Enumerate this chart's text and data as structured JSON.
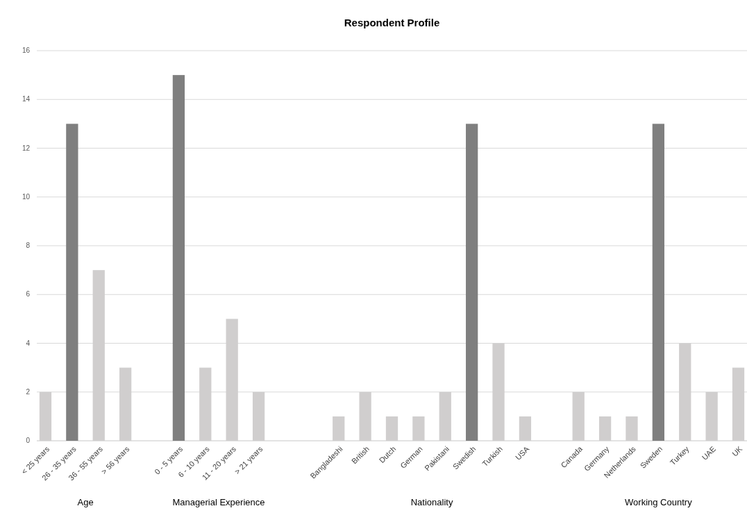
{
  "chart_data": {
    "type": "bar",
    "title": "Respondent Profile",
    "categories": [
      "< 25 years",
      "26 - 35 years",
      "36 - 55 years",
      "> 56 years",
      null,
      "0 - 5 years",
      "6 - 10 years",
      "11 - 20 years",
      "> 21 years",
      null,
      null,
      "Bangladeshi",
      "British",
      "Dutch",
      "German",
      "Pakistani",
      "Swedish",
      "Turkish",
      "USA",
      null,
      "Canada",
      "Germany",
      "Netherlands",
      "Sweden",
      "Turkey",
      "UAE",
      "UK"
    ],
    "values": [
      2,
      13,
      7,
      3,
      null,
      15,
      3,
      5,
      2,
      null,
      null,
      1,
      2,
      1,
      1,
      2,
      13,
      4,
      1,
      null,
      2,
      1,
      1,
      13,
      4,
      2,
      3
    ],
    "colors": [
      "#d0cece",
      "#7f7f7f",
      "#d0cece",
      "#d0cece",
      null,
      "#7f7f7f",
      "#d0cece",
      "#d0cece",
      "#d0cece",
      null,
      null,
      "#d0cece",
      "#d0cece",
      "#d0cece",
      "#d0cece",
      "#d0cece",
      "#7f7f7f",
      "#d0cece",
      "#d0cece",
      null,
      "#d0cece",
      "#d0cece",
      "#d0cece",
      "#7f7f7f",
      "#d0cece",
      "#d0cece",
      "#d0cece"
    ],
    "annotations": [
      "Age",
      "Managerial Experience",
      "Nationality",
      "Working Country"
    ],
    "ylim": [
      0,
      16
    ],
    "yticks": [
      0,
      2,
      4,
      6,
      8,
      10,
      12,
      14,
      16
    ],
    "grid": "y"
  }
}
